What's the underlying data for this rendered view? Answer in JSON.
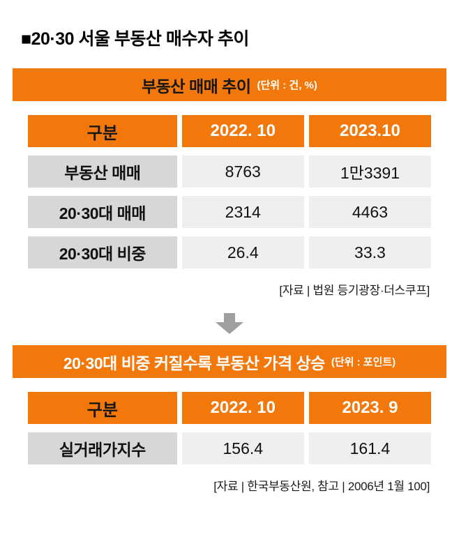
{
  "page": {
    "title": "■20·30 서울 부동산 매수자 추이"
  },
  "colors": {
    "orange": "#F2780C",
    "cell-label": "#D7D7D7",
    "cell-value": "#EFEFEF",
    "arrow": "#9F9F9F",
    "title-text": "#000000",
    "header-unit-text": "#FFFFFF"
  },
  "table1": {
    "title": "부동산 매매 추이",
    "unit": "(단위 : 건, %)",
    "headers": [
      "구분",
      "2022. 10",
      "2023.10"
    ],
    "rows": [
      {
        "label": "부동산 매매",
        "values": [
          "8763",
          "1만3391"
        ]
      },
      {
        "label": "20·30대 매매",
        "values": [
          "2314",
          "4463"
        ]
      },
      {
        "label": "20·30대 비중",
        "values": [
          "26.4",
          "33.3"
        ]
      }
    ],
    "source": "[자료 | 법원 등기광장·더스쿠프]"
  },
  "table2": {
    "title": "20·30대 비중 커질수록 부동산 가격 상승",
    "unit": "(단위 : 포인트)",
    "headers": [
      "구분",
      "2022. 10",
      "2023. 9"
    ],
    "rows": [
      {
        "label": "실거래가지수",
        "values": [
          "156.4",
          "161.4"
        ]
      }
    ],
    "source": "[자료 | 한국부동산원, 참고 | 2006년 1월 100]"
  },
  "chart_data": [
    {
      "type": "table",
      "title": "부동산 매매 추이",
      "unit": "건, %",
      "columns": [
        "구분",
        "2022. 10",
        "2023.10"
      ],
      "rows": [
        [
          "부동산 매매",
          8763,
          13391
        ],
        [
          "20·30대 매매",
          2314,
          4463
        ],
        [
          "20·30대 비중",
          26.4,
          33.3
        ]
      ],
      "notes": "1만3391 = 13391 (displayed in Korean number format)",
      "source": "법원 등기광장·더스쿠프"
    },
    {
      "type": "table",
      "title": "20·30대 비중 커질수록 부동산 가격 상승",
      "unit": "포인트",
      "columns": [
        "구분",
        "2022. 10",
        "2023. 9"
      ],
      "rows": [
        [
          "실거래가지수",
          156.4,
          161.4
        ]
      ],
      "source": "한국부동산원, 참고 | 2006년 1월 100"
    }
  ]
}
